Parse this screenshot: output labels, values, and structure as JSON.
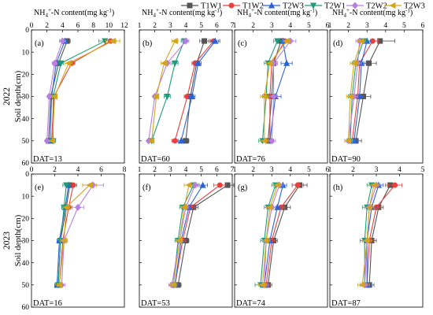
{
  "legend": [
    {
      "name": "T1W1",
      "color": "#555555",
      "marker": "square"
    },
    {
      "name": "T1W2",
      "color": "#e8413c",
      "marker": "circle"
    },
    {
      "name": "T2W3",
      "color": "#2b62d6",
      "marker": "triangle-up"
    },
    {
      "name": "T2W1",
      "color": "#1f9a7a",
      "marker": "triangle-down"
    },
    {
      "name": "T2W2",
      "color": "#b77ee0",
      "marker": "diamond"
    },
    {
      "name": "T2W3",
      "color": "#d4a51c",
      "marker": "triangle-left"
    }
  ],
  "chart_data": {
    "type": "line",
    "ylabel": "Soil depth(cm)",
    "xlabel": "NH4+-N content(mg kg-1)",
    "xlabel_parts": {
      "main": "NH",
      "sub": "4",
      "sup": "+",
      "rest": "-N content(mg kg",
      "unit_sup": "-1",
      "close": ")"
    },
    "depths": [
      5,
      15,
      30,
      50
    ],
    "ylim": [
      0,
      60
    ],
    "yticks": [
      0,
      10,
      20,
      30,
      40,
      50,
      60
    ],
    "year_labels": [
      "2022",
      "2023"
    ],
    "panels": [
      {
        "label": "(a)",
        "dat": "DAT=13",
        "year": "2022",
        "xlim": [
          0,
          12
        ],
        "xticks": [
          0,
          2,
          4,
          6,
          8,
          10,
          12
        ],
        "series": [
          {
            "name": "T1W1",
            "values": [
              4.6,
              3.5,
              2.5,
              2.2
            ],
            "err": [
              0.4,
              0.3,
              0.2,
              0.2
            ]
          },
          {
            "name": "T1W2",
            "values": [
              10.2,
              5.2,
              2.9,
              2.6
            ],
            "err": [
              0.7,
              0.4,
              0.3,
              0.2
            ]
          },
          {
            "name": "T2W3",
            "values": [
              4.3,
              3.2,
              2.6,
              2.4
            ],
            "err": [
              0.3,
              0.3,
              0.2,
              0.2
            ]
          },
          {
            "name": "T2W1",
            "values": [
              9.5,
              3.8,
              2.8,
              2.8
            ],
            "err": [
              0.8,
              0.3,
              0.3,
              0.3
            ]
          },
          {
            "name": "T2W2",
            "values": [
              4.0,
              3.0,
              2.3,
              2.0
            ],
            "err": [
              0.4,
              0.3,
              0.2,
              0.2
            ]
          },
          {
            "name": "T2W3",
            "values": [
              10.5,
              4.8,
              3.0,
              2.7
            ],
            "err": [
              0.9,
              0.5,
              0.3,
              0.3
            ]
          }
        ]
      },
      {
        "label": "(b)",
        "dat": "DAT=60",
        "year": "2022",
        "xlim": [
          1,
          7
        ],
        "xticks": [
          1,
          2,
          3,
          4,
          5,
          6,
          7
        ],
        "series": [
          {
            "name": "T1W1",
            "values": [
              5.2,
              4.7,
              4.3,
              4.0
            ],
            "err": [
              0.3,
              0.2,
              0.2,
              0.2
            ]
          },
          {
            "name": "T1W2",
            "values": [
              5.8,
              4.6,
              4.1,
              3.3
            ],
            "err": [
              0.3,
              0.2,
              0.2,
              0.2
            ]
          },
          {
            "name": "T2W3",
            "values": [
              5.9,
              4.8,
              4.4,
              3.7
            ],
            "err": [
              0.3,
              0.2,
              0.2,
              0.2
            ]
          },
          {
            "name": "T2W1",
            "values": [
              3.9,
              3.3,
              2.8,
              1.8
            ],
            "err": [
              0.2,
              0.2,
              0.2,
              0.1
            ]
          },
          {
            "name": "T2W2",
            "values": [
              4.0,
              2.8,
              2.0,
              1.6
            ],
            "err": [
              0.2,
              0.2,
              0.1,
              0.1
            ]
          },
          {
            "name": "T2W3",
            "values": [
              3.3,
              2.6,
              2.1,
              1.8
            ],
            "err": [
              0.2,
              0.2,
              0.1,
              0.1
            ]
          }
        ]
      },
      {
        "label": "(c)",
        "dat": "DAT=76",
        "year": "2022",
        "xlim": [
          1,
          6
        ],
        "xticks": [
          1,
          2,
          3,
          4,
          5,
          6
        ],
        "series": [
          {
            "name": "T1W1",
            "values": [
              3.5,
              3.1,
              3.0,
              2.8
            ],
            "err": [
              0.2,
              0.2,
              0.2,
              0.2
            ]
          },
          {
            "name": "T1W2",
            "values": [
              3.7,
              3.0,
              2.9,
              2.9
            ],
            "err": [
              0.2,
              0.2,
              0.2,
              0.2
            ]
          },
          {
            "name": "T2W3",
            "values": [
              3.6,
              3.8,
              3.2,
              2.9
            ],
            "err": [
              0.3,
              0.3,
              0.3,
              0.2
            ]
          },
          {
            "name": "T2W1",
            "values": [
              3.3,
              2.8,
              2.7,
              2.5
            ],
            "err": [
              0.2,
              0.2,
              0.2,
              0.2
            ]
          },
          {
            "name": "T2W2",
            "values": [
              4.0,
              3.1,
              3.1,
              3.0
            ],
            "err": [
              0.3,
              0.2,
              0.2,
              0.2
            ]
          },
          {
            "name": "T2W3",
            "values": [
              3.8,
              2.9,
              2.6,
              2.6
            ],
            "err": [
              0.2,
              0.2,
              0.2,
              0.2
            ]
          }
        ]
      },
      {
        "label": "(d)",
        "dat": "DAT=90",
        "year": "2022",
        "xlim": [
          1,
          6
        ],
        "xticks": [
          1,
          2,
          3,
          4,
          5,
          6
        ],
        "series": [
          {
            "name": "T1W1",
            "values": [
              3.7,
              3.1,
              2.8,
              2.4
            ],
            "err": [
              0.8,
              0.4,
              0.4,
              0.3
            ]
          },
          {
            "name": "T1W2",
            "values": [
              3.3,
              2.6,
              2.5,
              2.2
            ],
            "err": [
              0.3,
              0.2,
              0.2,
              0.2
            ]
          },
          {
            "name": "T2W3",
            "values": [
              3.0,
              2.7,
              2.6,
              2.3
            ],
            "err": [
              0.2,
              0.2,
              0.2,
              0.2
            ]
          },
          {
            "name": "T2W1",
            "values": [
              2.8,
              2.4,
              2.2,
              2.1
            ],
            "err": [
              0.2,
              0.2,
              0.2,
              0.2
            ]
          },
          {
            "name": "T2W2",
            "values": [
              2.6,
              2.5,
              2.3,
              2.0
            ],
            "err": [
              0.2,
              0.2,
              0.2,
              0.2
            ]
          },
          {
            "name": "T2W3",
            "values": [
              2.7,
              2.3,
              2.1,
              2.0
            ],
            "err": [
              0.2,
              0.2,
              0.2,
              0.2
            ]
          }
        ]
      },
      {
        "label": "(e)",
        "dat": "DAT=16",
        "year": "2023",
        "xlim": [
          0,
          8
        ],
        "xticks": [
          0,
          2,
          4,
          6,
          8
        ],
        "series": [
          {
            "name": "T1W1",
            "values": [
              3.3,
              3.0,
              2.5,
              2.3
            ],
            "err": [
              0.3,
              0.3,
              0.2,
              0.2
            ]
          },
          {
            "name": "T1W2",
            "values": [
              3.6,
              3.2,
              2.7,
              2.4
            ],
            "err": [
              0.3,
              0.3,
              0.2,
              0.2
            ]
          },
          {
            "name": "T2W3",
            "values": [
              3.2,
              2.9,
              2.4,
              2.2
            ],
            "err": [
              0.3,
              0.3,
              0.2,
              0.2
            ]
          },
          {
            "name": "T2W1",
            "values": [
              3.0,
              2.8,
              2.5,
              2.3
            ],
            "err": [
              0.3,
              0.2,
              0.2,
              0.2
            ]
          },
          {
            "name": "T2W2",
            "values": [
              5.3,
              4.0,
              2.8,
              2.6
            ],
            "err": [
              0.9,
              0.5,
              0.3,
              0.3
            ]
          },
          {
            "name": "T2W3",
            "values": [
              5.0,
              3.0,
              2.8,
              2.4
            ],
            "err": [
              0.6,
              0.3,
              0.3,
              0.2
            ]
          }
        ]
      },
      {
        "label": "(f)",
        "dat": "DAT=53",
        "year": "2023",
        "xlim": [
          1,
          7
        ],
        "xticks": [
          1,
          2,
          3,
          4,
          5,
          6,
          7
        ],
        "series": [
          {
            "name": "T1W1",
            "values": [
              6.7,
              4.5,
              4.0,
              3.5
            ],
            "err": [
              0.4,
              0.3,
              0.2,
              0.2
            ]
          },
          {
            "name": "T1W2",
            "values": [
              6.2,
              4.3,
              3.8,
              3.3
            ],
            "err": [
              0.4,
              0.3,
              0.2,
              0.2
            ]
          },
          {
            "name": "T2W3",
            "values": [
              5.1,
              4.2,
              3.7,
              3.3
            ],
            "err": [
              0.3,
              0.3,
              0.2,
              0.2
            ]
          },
          {
            "name": "T2W1",
            "values": [
              4.5,
              3.8,
              3.5,
              3.2
            ],
            "err": [
              0.3,
              0.2,
              0.2,
              0.2
            ]
          },
          {
            "name": "T2W2",
            "values": [
              4.6,
              4.0,
              3.6,
              3.1
            ],
            "err": [
              0.3,
              0.2,
              0.2,
              0.2
            ]
          },
          {
            "name": "T2W3",
            "values": [
              4.2,
              3.9,
              3.6,
              3.2
            ],
            "err": [
              0.3,
              0.2,
              0.2,
              0.2
            ]
          }
        ]
      },
      {
        "label": "(g)",
        "dat": "DAT=74",
        "year": "2023",
        "xlim": [
          1,
          6
        ],
        "xticks": [
          1,
          2,
          3,
          4,
          5,
          6
        ],
        "series": [
          {
            "name": "T1W1",
            "values": [
              4.5,
              3.7,
              3.1,
              2.8
            ],
            "err": [
              0.4,
              0.3,
              0.2,
              0.2
            ]
          },
          {
            "name": "T1W2",
            "values": [
              4.4,
              3.5,
              3.0,
              2.7
            ],
            "err": [
              0.3,
              0.2,
              0.2,
              0.2
            ]
          },
          {
            "name": "T2W3",
            "values": [
              3.6,
              3.3,
              2.9,
              2.6
            ],
            "err": [
              0.2,
              0.2,
              0.2,
              0.2
            ]
          },
          {
            "name": "T2W1",
            "values": [
              3.2,
              2.8,
              2.6,
              2.4
            ],
            "err": [
              0.2,
              0.2,
              0.2,
              0.3
            ]
          },
          {
            "name": "T2W2",
            "values": [
              3.4,
              3.0,
              2.7,
              2.6
            ],
            "err": [
              0.2,
              0.2,
              0.2,
              0.2
            ]
          },
          {
            "name": "T2W3",
            "values": [
              3.3,
              2.9,
              2.7,
              2.5
            ],
            "err": [
              0.2,
              0.2,
              0.2,
              0.2
            ]
          }
        ]
      },
      {
        "label": "(h)",
        "dat": "DAT=87",
        "year": "2023",
        "xlim": [
          1,
          5
        ],
        "xticks": [
          1,
          2,
          3,
          4,
          5
        ],
        "series": [
          {
            "name": "T1W1",
            "values": [
              3.6,
              3.1,
              2.8,
              2.7
            ],
            "err": [
              0.2,
              0.2,
              0.2,
              0.2
            ]
          },
          {
            "name": "T1W2",
            "values": [
              3.8,
              3.0,
              2.7,
              2.6
            ],
            "err": [
              0.3,
              0.2,
              0.2,
              0.2
            ]
          },
          {
            "name": "T2W3",
            "values": [
              3.1,
              2.8,
              2.6,
              2.6
            ],
            "err": [
              0.2,
              0.2,
              0.2,
              0.2
            ]
          },
          {
            "name": "T2W1",
            "values": [
              2.8,
              2.6,
              2.5,
              2.5
            ],
            "err": [
              0.2,
              0.2,
              0.2,
              0.2
            ]
          },
          {
            "name": "T2W2",
            "values": [
              3.0,
              2.7,
              2.6,
              2.5
            ],
            "err": [
              0.2,
              0.2,
              0.2,
              0.2
            ]
          },
          {
            "name": "T2W3",
            "values": [
              2.9,
              2.7,
              2.6,
              2.4
            ],
            "err": [
              0.2,
              0.2,
              0.2,
              0.2
            ]
          }
        ]
      }
    ]
  }
}
